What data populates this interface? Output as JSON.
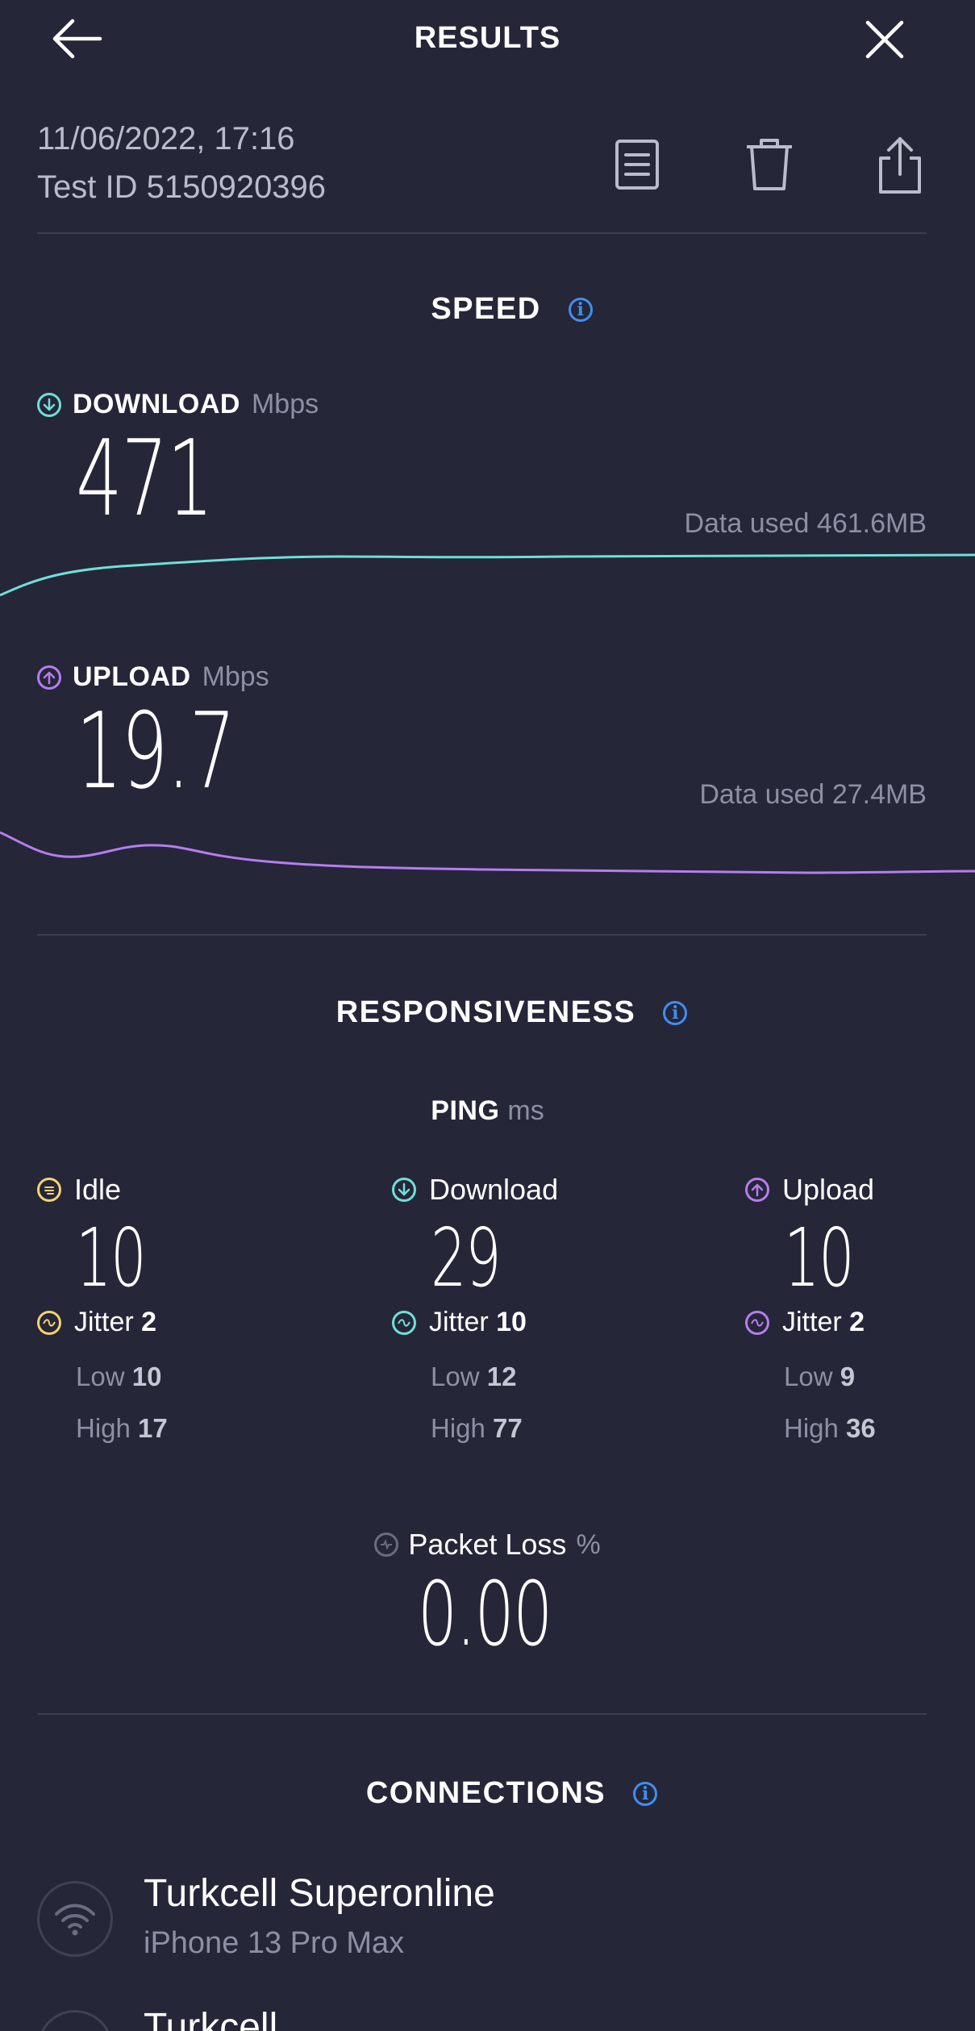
{
  "header": {
    "title": "RESULTS"
  },
  "meta": {
    "date": "11/06/2022, 17:16",
    "test_id": "Test ID 5150920396"
  },
  "speed": {
    "title": "SPEED",
    "download": {
      "label": "DOWNLOAD",
      "unit": "Mbps",
      "value": "471",
      "data_used": "Data used 461.6MB",
      "color": "#6ee0d8"
    },
    "upload": {
      "label": "UPLOAD",
      "unit": "Mbps",
      "value": "19.7",
      "data_used": "Data used 27.4MB",
      "color": "#b57df0"
    }
  },
  "responsiveness": {
    "title": "RESPONSIVENESS",
    "ping_label": "PING",
    "ping_unit": "ms",
    "columns": [
      {
        "label": "Idle",
        "value": "10",
        "jitter_label": "Jitter",
        "jitter": "2",
        "low_label": "Low",
        "low": "10",
        "high_label": "High",
        "high": "17",
        "color": "#f2d470"
      },
      {
        "label": "Download",
        "value": "29",
        "jitter_label": "Jitter",
        "jitter": "10",
        "low_label": "Low",
        "low": "12",
        "high_label": "High",
        "high": "77",
        "color": "#6ee0d8"
      },
      {
        "label": "Upload",
        "value": "10",
        "jitter_label": "Jitter",
        "jitter": "2",
        "low_label": "Low",
        "low": "9",
        "high_label": "High",
        "high": "36",
        "color": "#b57df0"
      }
    ],
    "packet_loss_label": "Packet Loss",
    "packet_loss_unit": "%",
    "packet_loss": "0.00"
  },
  "connections": {
    "title": "CONNECTIONS",
    "items": [
      {
        "name": "Turkcell Superonline",
        "device": "iPhone 13 Pro Max"
      },
      {
        "name": "Turkcell",
        "device": ""
      }
    ]
  },
  "icons": {
    "back": "arrow-left-icon",
    "close": "close-icon",
    "notes": "document-icon",
    "delete": "trash-icon",
    "share": "share-icon"
  }
}
